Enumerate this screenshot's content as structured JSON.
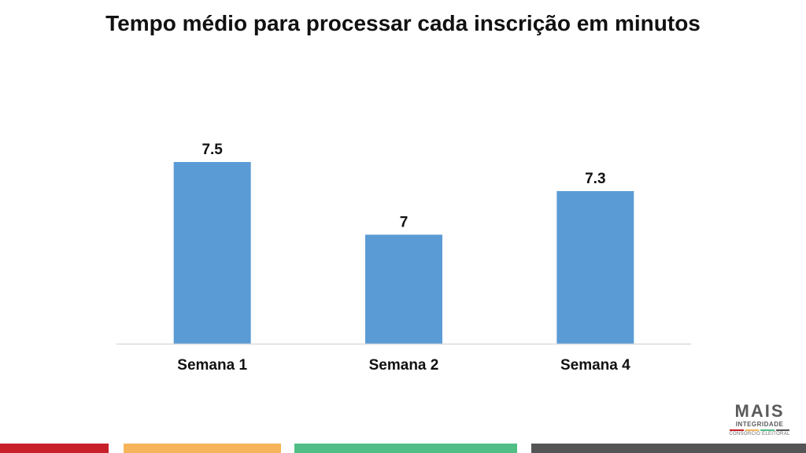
{
  "chart_data": {
    "type": "bar",
    "title": "Tempo médio para processar cada inscrição em minutos",
    "categories": [
      "Semana 1",
      "Semana 2",
      "Semana 4"
    ],
    "values": [
      7.5,
      7,
      7.3
    ],
    "value_labels": [
      "7.5",
      "7",
      "7.3"
    ],
    "xlabel": "",
    "ylabel": "",
    "ylim": [
      6.25,
      7.5
    ],
    "grid": false,
    "legend": "none",
    "bar_color": "#5b9bd5"
  },
  "logo": {
    "main": "MAIS",
    "sub": "INTEGRIDADE",
    "tag": "CONSÓRCIO ELEITORAL",
    "stripe_colors": [
      "#c8202a",
      "#f6b55a",
      "#4fbf85",
      "#555555"
    ]
  },
  "footer": {
    "colors": [
      "#c8202a",
      "#f6b55a",
      "#4fbf85",
      "#555555"
    ]
  }
}
